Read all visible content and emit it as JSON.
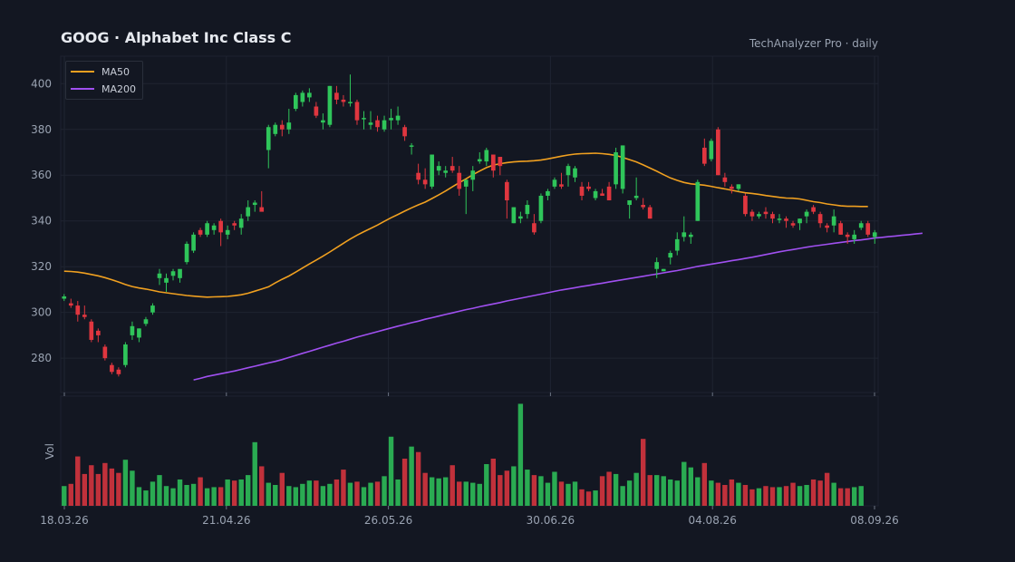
{
  "title": "GOOG  ·  Alphabet Inc Class C",
  "source_label": "TechAnalyzer Pro · daily",
  "colors": {
    "background": "#131722",
    "up": "#2fc55a",
    "down": "#e0363f",
    "ma50": "#f0a020",
    "ma200": "#a050f0",
    "grid": "#1f2431",
    "axis_text": "#9aa3b2"
  },
  "chart_data": [
    {
      "type": "candlestick",
      "title": "GOOG  ·  Alphabet Inc Class C",
      "x_tick_labels": [
        "18.03.26",
        "21.04.26",
        "26.05.26",
        "30.06.26",
        "04.08.26",
        "08.09.26"
      ],
      "y_ticks": [
        280,
        300,
        320,
        340,
        360,
        380,
        400
      ],
      "ylim": [
        265,
        412
      ],
      "grid": true,
      "legend": {
        "placement": "top-left",
        "entries": [
          "MA50",
          "MA200"
        ]
      },
      "ohlc": [
        [
          306,
          308,
          305,
          307
        ],
        [
          304,
          306,
          302,
          303
        ],
        [
          303,
          305,
          296,
          299
        ],
        [
          299,
          303,
          297,
          298
        ],
        [
          296,
          297,
          287,
          288
        ],
        [
          292,
          293,
          287,
          290
        ],
        [
          285,
          286,
          279,
          280
        ],
        [
          277,
          278,
          273,
          274
        ],
        [
          275,
          276,
          272,
          273
        ],
        [
          277,
          287,
          276,
          286
        ],
        [
          290,
          296,
          288,
          294
        ],
        [
          289,
          293,
          287,
          293
        ],
        [
          295,
          298,
          294,
          297
        ],
        [
          300,
          304,
          299,
          303
        ],
        [
          315,
          319,
          312,
          317
        ],
        [
          313,
          317,
          309,
          315
        ],
        [
          316,
          319,
          314,
          318
        ],
        [
          315,
          318,
          313,
          319
        ],
        [
          322,
          331,
          321,
          330
        ],
        [
          327,
          335,
          326,
          334
        ],
        [
          336,
          337,
          333,
          334
        ],
        [
          334,
          340,
          333,
          339
        ],
        [
          336,
          339,
          334,
          338
        ],
        [
          340,
          341,
          329,
          335
        ],
        [
          334,
          338,
          332,
          336
        ],
        [
          339,
          340,
          336,
          338
        ],
        [
          337,
          343,
          334,
          341
        ],
        [
          342,
          349,
          340,
          346
        ],
        [
          347,
          349,
          344,
          348
        ],
        [
          346,
          353,
          345,
          344
        ],
        [
          371,
          382,
          363,
          381
        ],
        [
          378,
          383,
          377,
          382
        ],
        [
          382,
          384,
          377,
          380
        ],
        [
          380,
          389,
          378,
          383
        ],
        [
          389,
          396,
          388,
          395
        ],
        [
          392,
          397,
          390,
          396
        ],
        [
          394,
          398,
          392,
          396
        ],
        [
          390,
          392,
          385,
          386
        ],
        [
          383,
          387,
          380,
          384
        ],
        [
          382,
          399,
          381,
          399
        ],
        [
          396,
          399,
          391,
          393
        ],
        [
          393,
          395,
          390,
          392
        ],
        [
          392,
          404,
          390,
          392
        ],
        [
          392,
          393,
          382,
          384
        ],
        [
          385,
          388,
          380,
          385
        ],
        [
          382,
          388,
          380,
          383
        ],
        [
          384,
          386,
          379,
          381
        ],
        [
          380,
          386,
          379,
          384
        ],
        [
          384,
          389,
          380,
          385
        ],
        [
          384,
          390,
          382,
          386
        ],
        [
          381,
          382,
          375,
          377
        ],
        [
          373,
          374,
          369,
          373
        ],
        [
          361,
          365,
          356,
          358
        ],
        [
          358,
          363,
          354,
          356
        ],
        [
          355,
          369,
          354,
          369
        ],
        [
          362,
          366,
          360,
          364
        ],
        [
          361,
          364,
          359,
          362
        ],
        [
          364,
          368,
          361,
          362
        ],
        [
          361,
          364,
          351,
          354
        ],
        [
          355,
          358,
          343,
          358
        ],
        [
          358,
          364,
          353,
          362
        ],
        [
          366,
          370,
          365,
          367
        ],
        [
          366,
          372,
          364,
          371
        ],
        [
          369,
          369,
          359,
          362
        ],
        [
          368,
          368,
          360,
          364
        ],
        [
          357,
          358,
          341,
          349
        ],
        [
          339,
          346,
          339,
          346
        ],
        [
          341,
          344,
          339,
          342
        ],
        [
          343,
          349,
          341,
          347
        ],
        [
          339,
          343,
          334,
          335
        ],
        [
          340,
          352,
          339,
          351
        ],
        [
          351,
          354,
          349,
          353
        ],
        [
          355,
          359,
          354,
          358
        ],
        [
          356,
          361,
          354,
          355
        ],
        [
          360,
          365,
          355,
          364
        ],
        [
          359,
          364,
          357,
          363
        ],
        [
          355,
          357,
          349,
          351
        ],
        [
          355,
          357,
          353,
          354
        ],
        [
          350,
          354,
          349,
          353
        ],
        [
          352,
          354,
          351,
          351
        ],
        [
          355,
          357,
          349,
          349
        ],
        [
          356,
          372,
          354,
          370
        ],
        [
          354,
          373,
          352,
          373
        ],
        [
          347,
          349,
          341,
          349
        ],
        [
          350,
          359,
          349,
          351
        ],
        [
          347,
          350,
          345,
          346
        ],
        [
          346,
          347,
          341,
          341
        ],
        [
          319,
          324,
          315,
          322
        ],
        [
          318,
          319,
          318,
          319
        ],
        [
          324,
          327,
          321,
          326
        ],
        [
          327,
          335,
          325,
          332
        ],
        [
          333,
          342,
          331,
          335
        ],
        [
          333,
          335,
          330,
          334
        ],
        [
          340,
          358,
          340,
          357
        ],
        [
          372,
          376,
          364,
          365
        ],
        [
          367,
          376,
          366,
          375
        ],
        [
          380,
          381,
          360,
          360
        ],
        [
          359,
          361,
          355,
          357
        ],
        [
          355,
          356,
          352,
          354
        ],
        [
          354,
          356,
          353,
          356
        ],
        [
          351,
          352,
          342,
          343
        ],
        [
          344,
          345,
          340,
          342
        ],
        [
          342,
          344,
          341,
          343
        ],
        [
          344,
          346,
          341,
          343
        ],
        [
          343,
          344,
          339,
          341
        ],
        [
          341,
          343,
          339,
          341
        ],
        [
          341,
          342,
          337,
          340
        ],
        [
          339,
          340,
          337,
          338
        ],
        [
          339,
          341,
          336,
          341
        ],
        [
          342,
          345,
          339,
          344
        ],
        [
          346,
          347,
          343,
          344
        ],
        [
          343,
          344,
          337,
          339
        ],
        [
          338,
          339,
          335,
          337
        ],
        [
          338,
          345,
          335,
          342
        ],
        [
          339,
          340,
          334,
          334
        ],
        [
          334,
          335,
          330,
          333
        ],
        [
          332,
          336,
          330,
          334
        ],
        [
          337,
          340,
          336,
          339
        ],
        [
          339,
          340,
          333,
          334
        ],
        [
          333,
          336,
          330,
          335
        ]
      ],
      "ma50": [
        318,
        317.9,
        317.6,
        317.2,
        316.6,
        316,
        315.2,
        314.3,
        313.3,
        312.2,
        311.3,
        310.7,
        310.2,
        309.6,
        309,
        308.6,
        308.2,
        307.8,
        307.4,
        307.1,
        306.9,
        306.7,
        306.8,
        306.9,
        307,
        307.3,
        307.7,
        308.4,
        309.3,
        310.2,
        311.2,
        312.9,
        314.5,
        315.9,
        317.6,
        319.4,
        321.2,
        322.9,
        324.6,
        326.4,
        328.3,
        330.2,
        332.1,
        333.8,
        335.3,
        336.7,
        338.2,
        339.8,
        341.4,
        342.8,
        344.3,
        345.7,
        347,
        348.2,
        349.8,
        351.4,
        353.1,
        354.9,
        356.7,
        358.4,
        360.2,
        361.8,
        363.3,
        364.4,
        365,
        365.5,
        365.8,
        366,
        366.1,
        366.3,
        366.6,
        367.1,
        367.7,
        368.3,
        368.8,
        369.2,
        369.4,
        369.5,
        369.6,
        369.4,
        369.1,
        368.6,
        367.8,
        366.8,
        365.8,
        364.5,
        363.1,
        361.7,
        360.2,
        358.8,
        357.7,
        356.8,
        356.2,
        355.9,
        355.6,
        355.1,
        354.5,
        354.0,
        353.4,
        352.8,
        352.3,
        352,
        351.6,
        351.1,
        350.7,
        350.3,
        350,
        349.9,
        349.6,
        349,
        348.4,
        348,
        347.4,
        347,
        346.6,
        346.4,
        346.4,
        346.3,
        346.3
      ],
      "ma200_start_index": 19,
      "ma200": [
        270.5,
        271.2,
        272,
        272.6,
        273.2,
        273.8,
        274.4,
        275.1,
        275.8,
        276.5,
        277.2,
        277.9,
        278.6,
        279.4,
        280.3,
        281.2,
        282.1,
        283,
        283.9,
        284.8,
        285.7,
        286.6,
        287.4,
        288.3,
        289.2,
        290,
        290.8,
        291.6,
        292.4,
        293.2,
        294,
        294.7,
        295.5,
        296.2,
        297,
        297.7,
        298.4,
        299.1,
        299.8,
        300.5,
        301.2,
        301.8,
        302.5,
        303.1,
        303.7,
        304.3,
        305,
        305.6,
        306.2,
        306.8,
        307.4,
        308,
        308.6,
        309.2,
        309.8,
        310.3,
        310.8,
        311.3,
        311.8,
        312.3,
        312.8,
        313.3,
        313.8,
        314.3,
        314.8,
        315.3,
        315.8,
        316.3,
        316.8,
        317.3,
        317.8,
        318.3,
        318.9,
        319.5,
        320.1,
        320.6,
        321.1,
        321.6,
        322.1,
        322.6,
        323.1,
        323.6,
        324.1,
        324.7,
        325.3,
        325.9,
        326.5,
        327,
        327.5,
        328,
        328.5,
        329,
        329.4,
        329.8,
        330.2,
        330.6,
        331,
        331.4,
        331.7,
        332.1,
        332.5,
        332.8,
        333.1,
        333.4,
        333.7,
        334,
        334.3,
        334.6
      ],
      "volume_axis_label": "Vol",
      "volume": [
        18,
        20,
        45,
        29,
        37,
        29,
        39,
        34,
        30,
        42,
        32,
        17,
        14,
        22,
        28,
        18,
        16,
        24,
        19,
        20,
        26,
        16,
        17,
        17,
        24,
        23,
        24,
        28,
        58,
        36,
        21,
        19,
        30,
        18,
        17,
        20,
        23,
        23,
        18,
        20,
        24,
        33,
        21,
        22,
        17,
        21,
        22,
        27,
        63,
        24,
        43,
        54,
        49,
        30,
        26,
        25,
        26,
        37,
        22,
        22,
        21,
        20,
        38,
        43,
        28,
        32,
        36,
        93,
        33,
        28,
        27,
        21,
        31,
        22,
        20,
        22,
        15,
        13,
        14,
        27,
        31,
        29,
        18,
        23,
        30,
        61,
        28,
        28,
        27,
        24,
        23,
        40,
        35,
        26,
        39,
        23,
        21,
        19,
        24,
        21,
        19,
        15,
        16,
        18,
        17,
        17,
        18,
        21,
        18,
        19,
        24,
        23,
        30,
        21,
        16,
        16,
        17,
        18
      ]
    }
  ]
}
